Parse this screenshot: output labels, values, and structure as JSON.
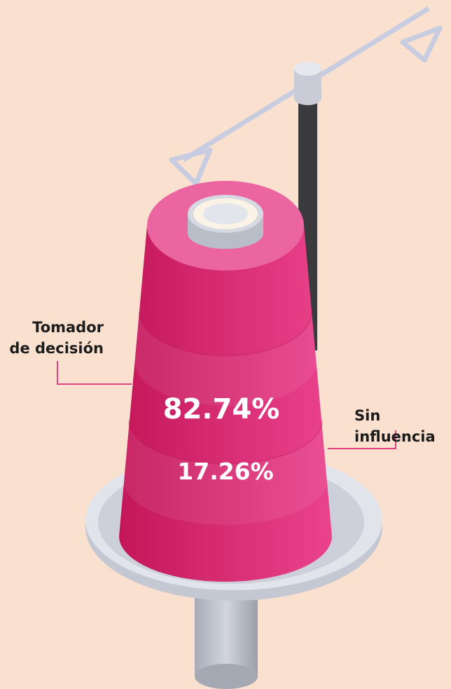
{
  "labels": [
    {
      "lines": [
        "Tomador",
        "de decisión"
      ],
      "value": "82.74%"
    },
    {
      "lines": [
        "Sin",
        "influencia"
      ],
      "value": "17.26%"
    }
  ]
}
